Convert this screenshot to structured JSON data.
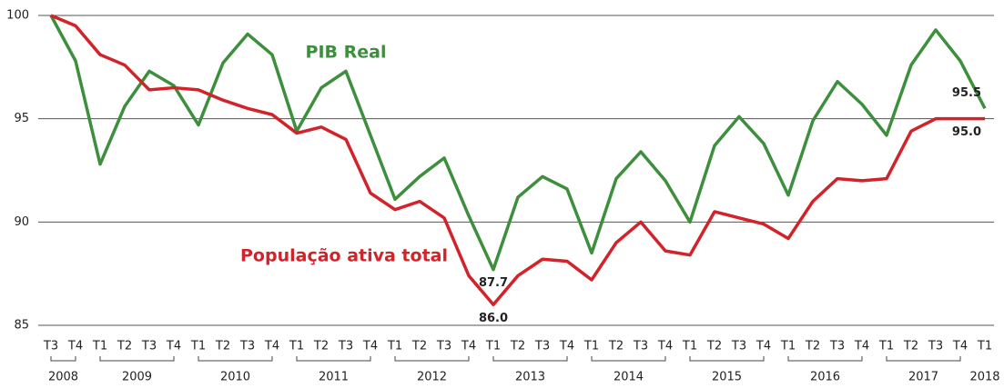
{
  "chart_data": {
    "type": "line",
    "category_groups": [
      {
        "label": "2008",
        "categories": [
          "T3",
          "T4"
        ]
      },
      {
        "label": "2009",
        "categories": [
          "T1",
          "T2",
          "T3",
          "T4"
        ]
      },
      {
        "label": "2010",
        "categories": [
          "T1",
          "T2",
          "T3",
          "T4"
        ]
      },
      {
        "label": "2011",
        "categories": [
          "T1",
          "T2",
          "T3",
          "T4"
        ]
      },
      {
        "label": "2012",
        "categories": [
          "T1",
          "T2",
          "T3",
          "T4"
        ]
      },
      {
        "label": "2013",
        "categories": [
          "T1",
          "T2",
          "T3",
          "T4"
        ]
      },
      {
        "label": "2014",
        "categories": [
          "T1",
          "T2",
          "T3",
          "T4"
        ]
      },
      {
        "label": "2015",
        "categories": [
          "T1",
          "T2",
          "T3",
          "T4"
        ]
      },
      {
        "label": "2016",
        "categories": [
          "T1",
          "T2",
          "T3",
          "T4"
        ]
      },
      {
        "label": "2017",
        "categories": [
          "T1",
          "T2",
          "T3",
          "T4"
        ]
      },
      {
        "label": "2018",
        "categories": [
          "T1"
        ]
      }
    ],
    "series": [
      {
        "name": "PIB Real",
        "color": "#3d8f3d",
        "values": [
          100,
          97.8,
          92.8,
          95.6,
          97.3,
          96.6,
          94.7,
          97.7,
          99.1,
          98.1,
          94.4,
          96.5,
          97.3,
          94.2,
          91.1,
          92.2,
          93.1,
          90.3,
          87.7,
          91.2,
          92.2,
          91.6,
          88.5,
          92.1,
          93.4,
          92.0,
          90.0,
          93.7,
          95.1,
          93.8,
          91.3,
          94.9,
          96.8,
          95.7,
          94.2,
          97.6,
          99.3,
          97.8,
          95.5
        ],
        "value_labels": [
          null,
          null,
          null,
          null,
          null,
          null,
          null,
          null,
          null,
          null,
          null,
          null,
          null,
          null,
          null,
          null,
          null,
          null,
          "87.7",
          null,
          null,
          null,
          null,
          null,
          null,
          null,
          null,
          null,
          null,
          null,
          null,
          null,
          null,
          null,
          null,
          null,
          null,
          null,
          "95.5"
        ]
      },
      {
        "name": "População ativa total",
        "color": "#d2232a",
        "values": [
          100,
          99.5,
          98.1,
          97.6,
          96.4,
          96.5,
          96.4,
          95.9,
          95.5,
          95.2,
          94.3,
          94.6,
          94.0,
          91.4,
          90.6,
          91.0,
          90.2,
          87.4,
          86.0,
          87.4,
          88.2,
          88.1,
          87.2,
          89.0,
          90.0,
          88.6,
          88.4,
          90.5,
          90.2,
          89.9,
          89.2,
          91.0,
          92.1,
          92.0,
          92.1,
          94.4,
          95.0,
          95.0,
          95.0
        ],
        "value_labels": [
          null,
          null,
          null,
          null,
          null,
          null,
          null,
          null,
          null,
          null,
          null,
          null,
          null,
          null,
          null,
          null,
          null,
          null,
          "86.0",
          null,
          null,
          null,
          null,
          null,
          null,
          null,
          null,
          null,
          null,
          null,
          null,
          null,
          null,
          null,
          null,
          null,
          null,
          null,
          "95.0"
        ]
      }
    ],
    "ylim": [
      85,
      100
    ],
    "yticks": [
      85,
      90,
      95,
      100
    ],
    "grid": true
  }
}
